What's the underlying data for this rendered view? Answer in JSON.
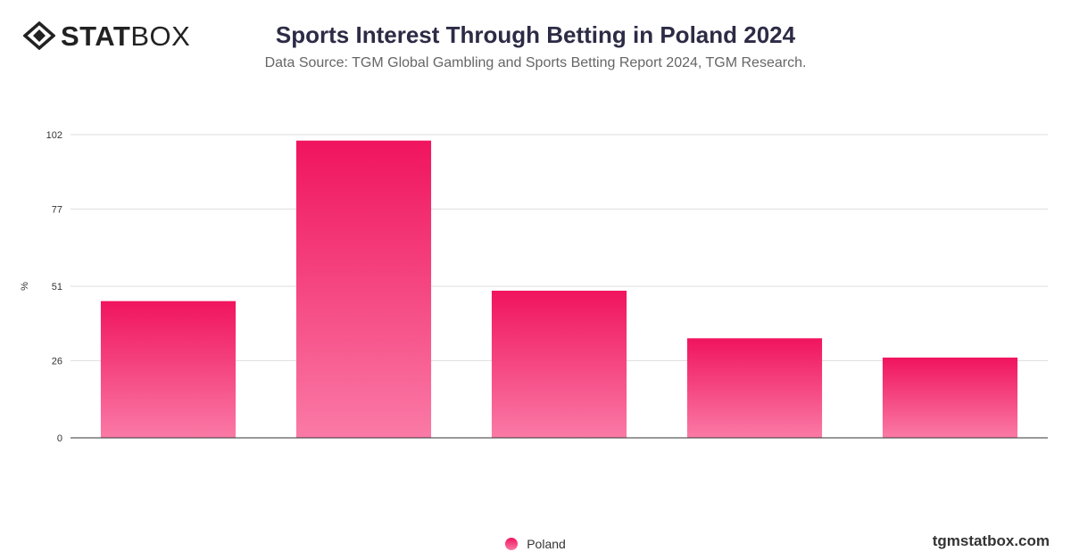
{
  "brand": {
    "logo_bold": "STAT",
    "logo_light": "BOX",
    "site": "tgmstatbox.com"
  },
  "colors": {
    "bar_top": "#f0145e",
    "bar_bottom": "#fa7aa6",
    "grid": "#dddddd",
    "axis": "#333333"
  },
  "chart_data": {
    "type": "bar",
    "title": "Sports Interest Through Betting in Poland 2024",
    "subtitle": "Data Source: TGM Global Gambling and Sports Betting Report 2024, TGM Research.",
    "xlabel": "",
    "ylabel": "%",
    "categories": [
      "",
      "",
      "",
      "",
      ""
    ],
    "series": [
      {
        "name": "Poland",
        "values": [
          46,
          100,
          49.5,
          33.5,
          27
        ]
      }
    ],
    "ylim": [
      0,
      102
    ],
    "yticks": [
      0,
      26,
      51,
      77,
      102
    ],
    "grid": true,
    "legend": "bottom-center"
  }
}
